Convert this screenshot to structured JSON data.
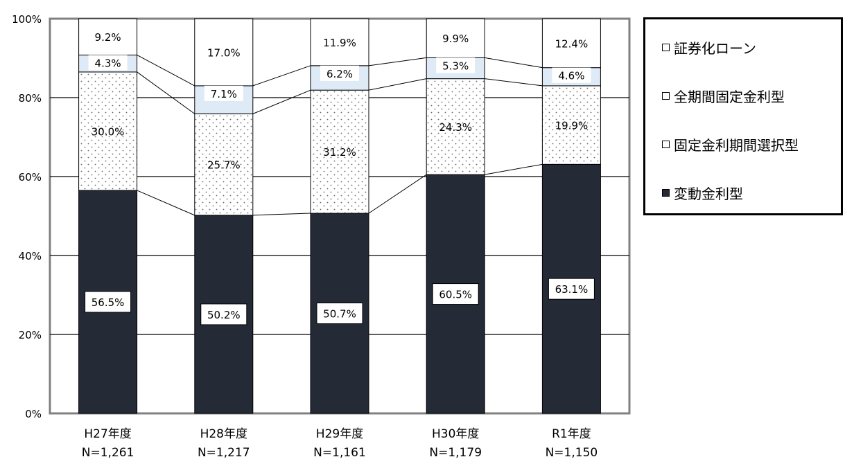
{
  "chart_data": {
    "type": "bar",
    "stacked": true,
    "categories": [
      "H27年度",
      "H28年度",
      "H29年度",
      "H30年度",
      "R1年度"
    ],
    "category_n": [
      "N=1,261",
      "N=1,217",
      "N=1,161",
      "N=1,179",
      "N=1,150"
    ],
    "series": [
      {
        "name": "変動金利型",
        "values": [
          56.5,
          50.2,
          50.7,
          60.5,
          63.1
        ],
        "color": "#252a37",
        "labels": [
          "56.5%",
          "50.2%",
          "50.7%",
          "60.5%",
          "63.1%"
        ]
      },
      {
        "name": "固定金利期間選択型",
        "values": [
          30.0,
          25.7,
          31.2,
          24.3,
          19.9
        ],
        "color": "#ffffff",
        "labels": [
          "30.0%",
          "25.7%",
          "31.2%",
          "24.3%",
          "19.9%"
        ]
      },
      {
        "name": "全期間固定金利型",
        "values": [
          4.3,
          7.1,
          6.2,
          5.3,
          4.6
        ],
        "color": "#deebf7",
        "labels": [
          "4.3%",
          "7.1%",
          "6.2%",
          "5.3%",
          "4.6%"
        ]
      },
      {
        "name": "証券化ローン",
        "values": [
          9.2,
          17.0,
          11.9,
          9.9,
          12.4
        ],
        "color": "#ffffff",
        "labels": [
          "9.2%",
          "17.0%",
          "11.9%",
          "9.9%",
          "12.4%"
        ]
      }
    ],
    "ylim": [
      0,
      100
    ],
    "y_ticks": [
      "0%",
      "20%",
      "40%",
      "60%",
      "80%",
      "100%"
    ],
    "grid": true,
    "legend_position": "right"
  },
  "legend": {
    "items": [
      {
        "label": "証券化ローン",
        "fill": "#ffffff"
      },
      {
        "label": "全期間固定金利型",
        "fill": "#ffffff"
      },
      {
        "label": "固定金利期間選択型",
        "fill": "#ffffff"
      },
      {
        "label": "変動金利型",
        "fill": "#252a37"
      }
    ]
  }
}
